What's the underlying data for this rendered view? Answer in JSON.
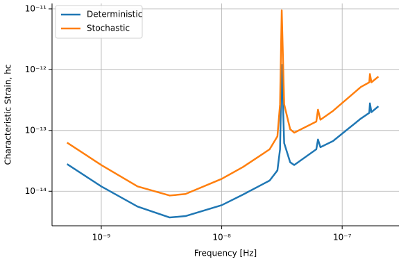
{
  "chart_data": {
    "type": "line",
    "x_label": "Frequency [Hz]",
    "y_label": "Characteristic Strain, hc",
    "x_scale": "log",
    "y_scale": "log",
    "grid": true,
    "legend": "upper-left",
    "x": [
      5.2e-10,
      1e-09,
      2e-09,
      3.7e-09,
      5e-09,
      1e-08,
      1.5e-08,
      2.5e-08,
      2.9e-08,
      3.05e-08,
      3.15e-08,
      3.3e-08,
      3.7e-08,
      4e-08,
      6.1e-08,
      6.3e-08,
      6.6e-08,
      8.4e-08,
      1.43e-07,
      1.68e-07,
      1.7e-07,
      1.75e-07,
      2e-07
    ],
    "series": [
      {
        "name": "Deterministic",
        "color": "#1f77b4",
        "values": [
          2.8e-14,
          1.2e-14,
          5.6e-15,
          3.7e-15,
          3.9e-15,
          5.9e-15,
          8.8e-15,
          1.5e-14,
          2.2e-14,
          4.9e-14,
          1.2e-12,
          6.2e-14,
          3e-14,
          2.7e-14,
          4.9e-14,
          7.1e-14,
          5.3e-14,
          6.7e-14,
          1.57e-13,
          1.95e-13,
          2.8e-13,
          2e-13,
          2.5e-13
        ]
      },
      {
        "name": "Stochastic",
        "color": "#ff7f0e",
        "values": [
          6.3e-14,
          2.7e-14,
          1.2e-14,
          8.5e-15,
          9e-15,
          1.6e-14,
          2.5e-14,
          4.9e-14,
          8e-14,
          2.7e-13,
          9.5e-12,
          2.7e-13,
          1.05e-13,
          9.2e-14,
          1.4e-13,
          2.2e-13,
          1.5e-13,
          2.1e-13,
          5.2e-13,
          6.2e-13,
          8.5e-13,
          6.2e-13,
          7.7e-13
        ]
      }
    ],
    "xlim": [
      3.9e-10,
      2.96e-07
    ],
    "ylim": [
      2.7e-15,
      1.23e-11
    ],
    "xticks": [
      {
        "value": 1e-09,
        "label": "10⁻⁹"
      },
      {
        "value": 1e-08,
        "label": "10⁻⁸"
      },
      {
        "value": 1e-07,
        "label": "10⁻⁷"
      }
    ],
    "yticks": [
      {
        "value": 1e-14,
        "label": "10⁻¹⁴"
      },
      {
        "value": 1e-13,
        "label": "10⁻¹³"
      },
      {
        "value": 1e-12,
        "label": "10⁻¹²"
      },
      {
        "value": 1e-11,
        "label": "10⁻¹¹"
      }
    ]
  }
}
